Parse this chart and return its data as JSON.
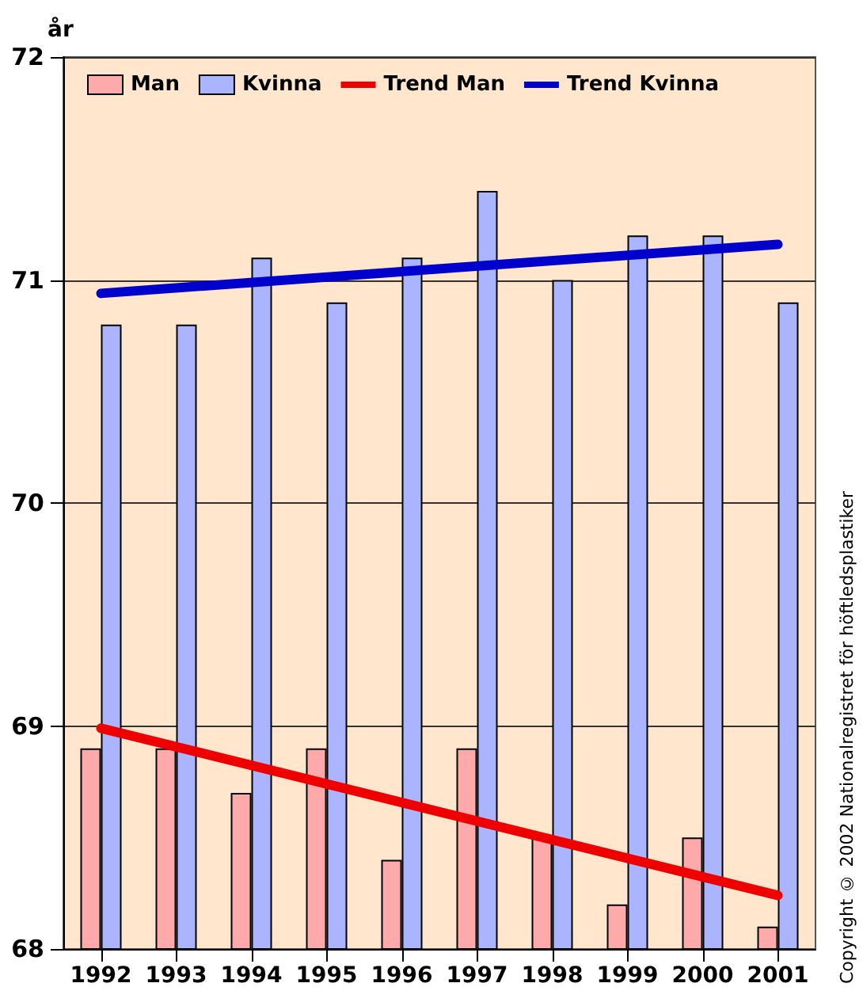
{
  "chart_data": {
    "type": "bar",
    "ylabel": "år",
    "categories": [
      "1992",
      "1993",
      "1994",
      "1995",
      "1996",
      "1997",
      "1998",
      "1999",
      "2000",
      "2001"
    ],
    "series": [
      {
        "name": "Man",
        "color": "#ffaaaa",
        "values": [
          68.9,
          68.9,
          68.7,
          68.9,
          68.4,
          68.9,
          68.5,
          68.2,
          68.5,
          68.1
        ]
      },
      {
        "name": "Kvinna",
        "color": "#aab4ff",
        "values": [
          70.8,
          70.8,
          71.1,
          70.9,
          71.1,
          71.4,
          71.0,
          71.2,
          71.2,
          70.9
        ]
      },
      {
        "name": "Trend Man",
        "type": "line",
        "color": "#ee0000",
        "values": [
          68.99,
          null,
          null,
          null,
          null,
          null,
          null,
          null,
          null,
          68.24
        ]
      },
      {
        "name": "Trend Kvinna",
        "type": "line",
        "color": "#0000cc",
        "values": [
          70.94,
          null,
          null,
          null,
          null,
          null,
          null,
          null,
          null,
          71.16
        ]
      }
    ],
    "ylim": [
      68,
      72
    ],
    "yticks": [
      68,
      69,
      70,
      71,
      72
    ],
    "grid": "y",
    "legend": "top left",
    "marker": "none",
    "line_style": "solid",
    "annotations": [
      "Copyright © 2002 Nationalregistret för höftledsplastiker"
    ]
  }
}
